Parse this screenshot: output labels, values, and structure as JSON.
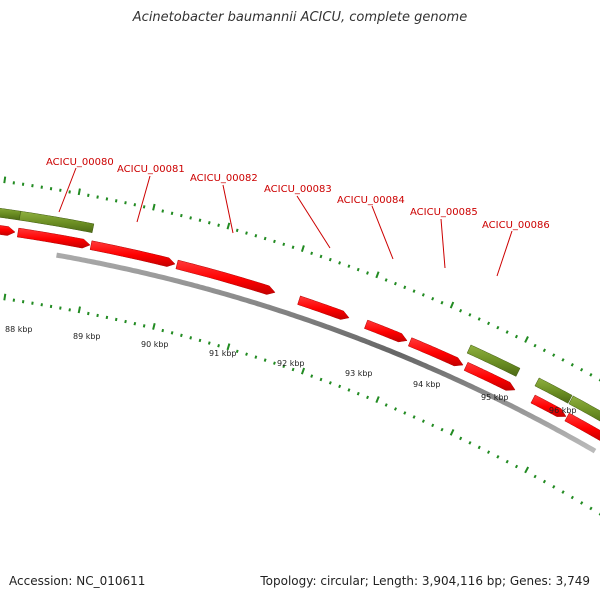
{
  "title": "Acinetobacter baumannii ACICU, complete genome",
  "footer": {
    "accession": "Accession: NC_010611",
    "summary": "Topology: circular; Length: 3,904,116 bp; Genes: 3,749"
  },
  "colors": {
    "forward_gene": "#ff0000",
    "reverse_gene": "#6b8e23",
    "label": "#cc0000",
    "tick": "#228b22",
    "backbone": "#777777"
  },
  "gene_labels": [
    "ACICU_00080",
    "ACICU_00081",
    "ACICU_00082",
    "ACICU_00083",
    "ACICU_00084",
    "ACICU_00085",
    "ACICU_00086"
  ],
  "kbp_labels": [
    "88 kbp",
    "89 kbp",
    "90 kbp",
    "91 kbp",
    "92 kbp",
    "93 kbp",
    "94 kbp",
    "95 kbp",
    "96 kbp"
  ]
}
